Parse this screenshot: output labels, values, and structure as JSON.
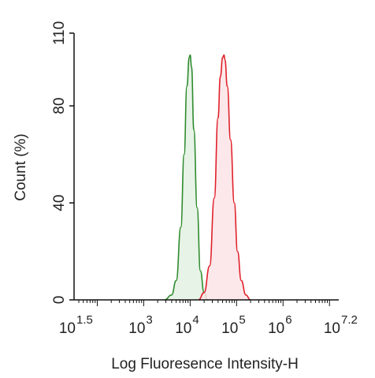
{
  "chart_data": {
    "type": "area",
    "xlabel": "Log Fluoresence Intensity-H",
    "ylabel": "Count  (%)",
    "x_scale": "log10",
    "xlim": [
      1.5,
      7.2
    ],
    "ylim": [
      0,
      110
    ],
    "grid": false,
    "x_ticks": [
      {
        "base": "10",
        "exp": "1.5",
        "value": 1.5
      },
      {
        "base": "10",
        "exp": "3",
        "value": 3
      },
      {
        "base": "10",
        "exp": "4",
        "value": 4
      },
      {
        "base": "10",
        "exp": "5",
        "value": 5
      },
      {
        "base": "10",
        "exp": "6",
        "value": 6
      },
      {
        "base": "10",
        "exp": "7.2",
        "value": 7.2
      }
    ],
    "y_ticks": [
      {
        "label": "0",
        "value": 0
      },
      {
        "label": "40",
        "value": 40
      },
      {
        "label": "80",
        "value": 80
      },
      {
        "label": "110",
        "value": 110
      }
    ],
    "series": [
      {
        "color": "#2e8b2e",
        "fill": "#e3f1e3",
        "x": [
          3.45,
          3.6,
          3.7,
          3.8,
          3.87,
          3.93,
          3.98,
          4.0,
          4.03,
          4.08,
          4.15,
          4.22,
          4.3,
          4.38
        ],
        "y": [
          0,
          2,
          8,
          30,
          60,
          88,
          100,
          101,
          96,
          70,
          38,
          12,
          3,
          0
        ]
      },
      {
        "color": "#e0202a",
        "fill": "#fce4e6",
        "x": [
          4.18,
          4.3,
          4.42,
          4.52,
          4.6,
          4.65,
          4.7,
          4.73,
          4.75,
          4.8,
          4.87,
          4.95,
          5.02,
          5.1,
          5.2,
          5.3
        ],
        "y": [
          0,
          3,
          14,
          42,
          75,
          92,
          100,
          101,
          99,
          88,
          66,
          40,
          20,
          8,
          2,
          0
        ]
      }
    ]
  }
}
